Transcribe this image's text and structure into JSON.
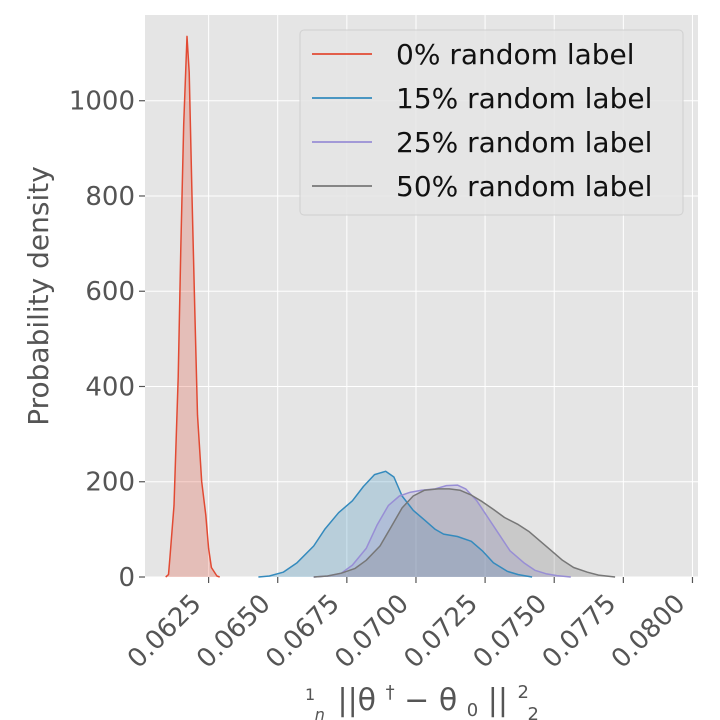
{
  "chart_data": {
    "type": "area",
    "xlabel": "1/n ||θ† − θ0||²₂",
    "ylabel": "Probability density",
    "xlim": [
      0.0602,
      0.0802
    ],
    "ylim": [
      0,
      1180
    ],
    "x_ticks": [
      "0.0625",
      "0.0650",
      "0.0675",
      "0.0700",
      "0.0725",
      "0.0750",
      "0.0775",
      "0.0800"
    ],
    "y_ticks": [
      "0",
      "200",
      "400",
      "600",
      "800",
      "1000"
    ],
    "grid": true,
    "legend_position": "top-right",
    "series": [
      {
        "name": "0% random label",
        "color": "#E24A33",
        "points": [
          [
            0.06095,
            0
          ],
          [
            0.06105,
            5
          ],
          [
            0.0611,
            40
          ],
          [
            0.06125,
            150
          ],
          [
            0.0614,
            420
          ],
          [
            0.0615,
            700
          ],
          [
            0.0616,
            950
          ],
          [
            0.06172,
            1135
          ],
          [
            0.0618,
            1060
          ],
          [
            0.0619,
            800
          ],
          [
            0.062,
            560
          ],
          [
            0.0621,
            340
          ],
          [
            0.06225,
            200
          ],
          [
            0.0624,
            130
          ],
          [
            0.0625,
            60
          ],
          [
            0.0626,
            20
          ],
          [
            0.0628,
            2
          ],
          [
            0.0629,
            0
          ]
        ]
      },
      {
        "name": "15% random label",
        "color": "#348ABD",
        "points": [
          [
            0.0643,
            0
          ],
          [
            0.0647,
            2
          ],
          [
            0.0652,
            10
          ],
          [
            0.0657,
            30
          ],
          [
            0.0663,
            65
          ],
          [
            0.0667,
            100
          ],
          [
            0.0672,
            135
          ],
          [
            0.0677,
            160
          ],
          [
            0.0681,
            190
          ],
          [
            0.0685,
            215
          ],
          [
            0.0689,
            222
          ],
          [
            0.0692,
            210
          ],
          [
            0.0695,
            170
          ],
          [
            0.0699,
            140
          ],
          [
            0.0703,
            120
          ],
          [
            0.0707,
            100
          ],
          [
            0.071,
            90
          ],
          [
            0.0715,
            85
          ],
          [
            0.072,
            75
          ],
          [
            0.0724,
            55
          ],
          [
            0.0728,
            30
          ],
          [
            0.0733,
            12
          ],
          [
            0.0737,
            5
          ],
          [
            0.0742,
            0
          ]
        ]
      },
      {
        "name": "25% random label",
        "color": "#988ED5",
        "points": [
          [
            0.0663,
            0
          ],
          [
            0.0668,
            2
          ],
          [
            0.0673,
            8
          ],
          [
            0.0677,
            25
          ],
          [
            0.0682,
            60
          ],
          [
            0.0686,
            110
          ],
          [
            0.069,
            150
          ],
          [
            0.0694,
            170
          ],
          [
            0.0698,
            178
          ],
          [
            0.0702,
            182
          ],
          [
            0.0707,
            185
          ],
          [
            0.0711,
            192
          ],
          [
            0.0715,
            193
          ],
          [
            0.0718,
            185
          ],
          [
            0.0722,
            160
          ],
          [
            0.0726,
            125
          ],
          [
            0.073,
            90
          ],
          [
            0.0734,
            55
          ],
          [
            0.0739,
            30
          ],
          [
            0.0743,
            14
          ],
          [
            0.0747,
            7
          ],
          [
            0.0751,
            3
          ],
          [
            0.0756,
            0
          ]
        ]
      },
      {
        "name": "50% random label",
        "color": "#777777",
        "points": [
          [
            0.0663,
            0
          ],
          [
            0.0668,
            2
          ],
          [
            0.0673,
            8
          ],
          [
            0.0678,
            18
          ],
          [
            0.0682,
            35
          ],
          [
            0.0687,
            65
          ],
          [
            0.0691,
            105
          ],
          [
            0.0695,
            145
          ],
          [
            0.0699,
            170
          ],
          [
            0.0703,
            182
          ],
          [
            0.0708,
            185
          ],
          [
            0.0712,
            185
          ],
          [
            0.0716,
            182
          ],
          [
            0.072,
            172
          ],
          [
            0.0724,
            158
          ],
          [
            0.0728,
            142
          ],
          [
            0.0732,
            125
          ],
          [
            0.0737,
            110
          ],
          [
            0.0741,
            95
          ],
          [
            0.0745,
            75
          ],
          [
            0.0749,
            55
          ],
          [
            0.0753,
            35
          ],
          [
            0.0757,
            20
          ],
          [
            0.0762,
            10
          ],
          [
            0.0766,
            4
          ],
          [
            0.0772,
            0
          ]
        ]
      }
    ]
  }
}
